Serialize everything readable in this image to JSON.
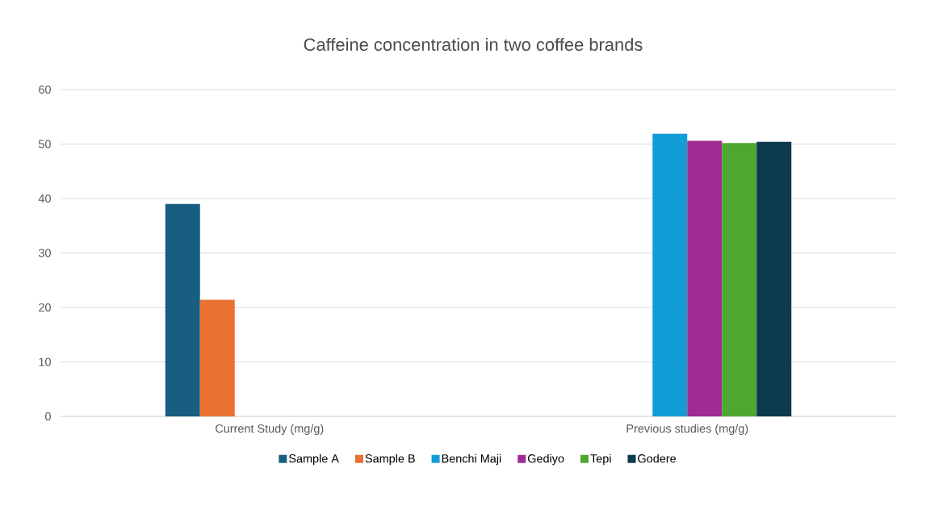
{
  "chart_data": {
    "type": "bar",
    "title": "Caffeine concentration in two coffee brands",
    "categories": [
      "Current Study (mg/g)",
      "Previous studies (mg/g)"
    ],
    "series": [
      {
        "name": "Sample A",
        "color": "#175e82",
        "values": [
          39.0,
          null
        ]
      },
      {
        "name": "Sample B",
        "color": "#e97132",
        "values": [
          21.4,
          null
        ]
      },
      {
        "name": "Benchi Maji",
        "color": "#129dd6",
        "values": [
          null,
          51.9
        ]
      },
      {
        "name": "Gediyo",
        "color": "#a02b93",
        "values": [
          null,
          50.6
        ]
      },
      {
        "name": "Tepi",
        "color": "#4ea72e",
        "values": [
          null,
          50.2
        ]
      },
      {
        "name": "Godere",
        "color": "#0e3a50",
        "values": [
          null,
          50.4
        ]
      }
    ],
    "ylim": [
      0,
      60
    ],
    "yticks": [
      0,
      10,
      20,
      30,
      40,
      50,
      60
    ],
    "grid": "y",
    "legend": "bottom"
  }
}
